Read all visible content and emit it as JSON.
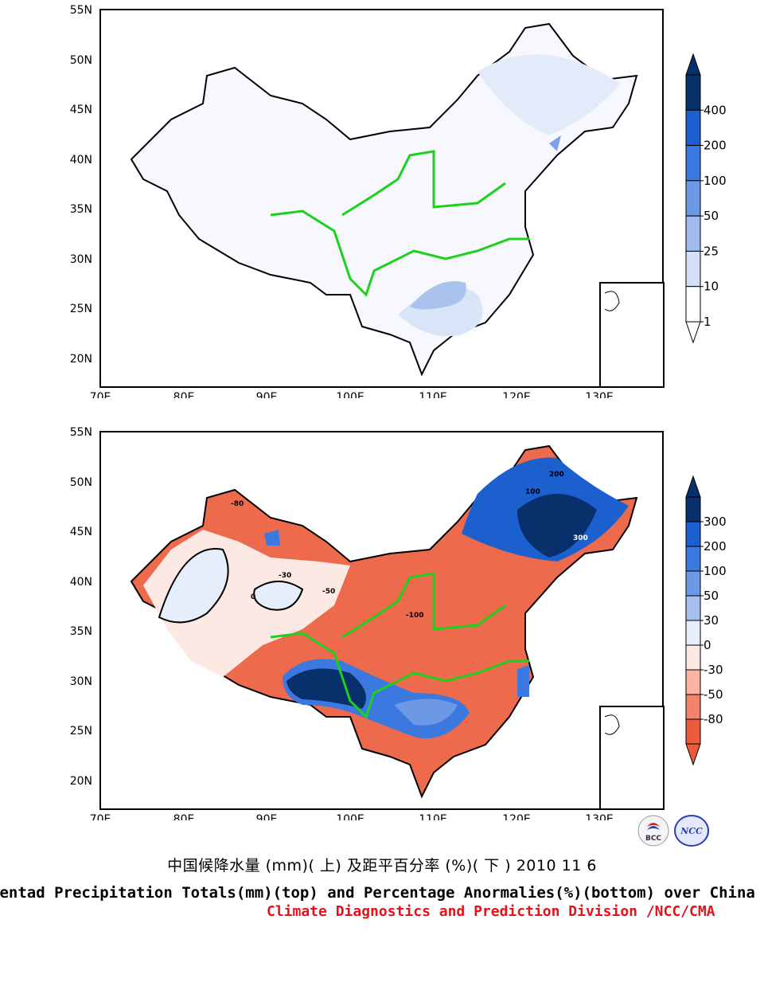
{
  "top_map": {
    "lat_labels": [
      "55N",
      "50N",
      "45N",
      "40N",
      "35N",
      "30N",
      "25N",
      "20N"
    ],
    "lon_labels": [
      "70E",
      "80E",
      "90E",
      "100E",
      "110E",
      "120E",
      "130E"
    ],
    "colorbar": {
      "labels": [
        "400",
        "200",
        "100",
        "50",
        "25",
        "10",
        "1"
      ],
      "colors": [
        "#08306b",
        "#1c5fcf",
        "#3b78e0",
        "#6c98e6",
        "#9fbbee",
        "#d2dff7",
        "#ffffff"
      ]
    }
  },
  "bottom_map": {
    "lat_labels": [
      "55N",
      "50N",
      "45N",
      "40N",
      "35N",
      "30N",
      "25N",
      "20N"
    ],
    "lon_labels": [
      "70E",
      "80E",
      "90E",
      "100E",
      "110E",
      "120E",
      "130E"
    ],
    "colorbar": {
      "labels": [
        "300",
        "200",
        "100",
        "50",
        "30",
        "0",
        "-30",
        "-50",
        "-80"
      ],
      "colors": [
        "#08306b",
        "#1c5fcf",
        "#3b78e0",
        "#6c98e6",
        "#a7c0ee",
        "#e6eefb",
        "#fde9e4",
        "#fbb4a2",
        "#f4836c",
        "#ee5a3c"
      ]
    },
    "contour_labels": [
      "100",
      "200",
      "300",
      "-30",
      "-50",
      "-80",
      "-100",
      "0"
    ]
  },
  "caption": {
    "chinese": "中国候降水量 (mm)( 上) 及距平百分率 (%)( 下 ) 2010 11 6",
    "english": "Pentad Precipitation Totals(mm)(top) and Percentage Anormalies(%)(bottom) over China",
    "org": "Climate Diagnostics and Prediction Division /NCC/CMA"
  },
  "logos": {
    "left_text": "BCC",
    "right_text": "NCC"
  }
}
